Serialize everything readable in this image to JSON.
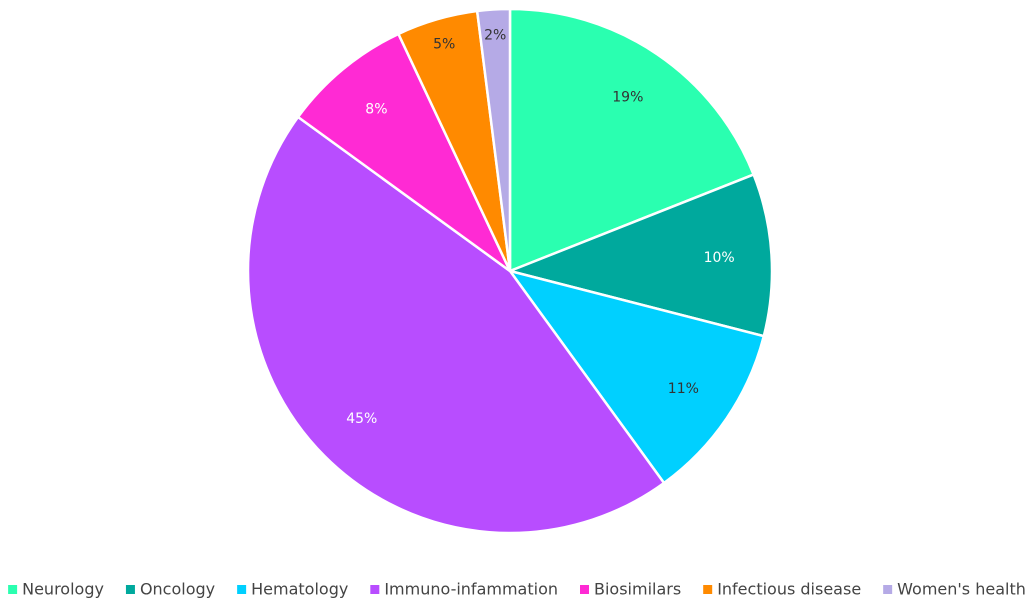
{
  "chart_data": {
    "type": "pie",
    "categories": [
      "Neurology",
      "Oncology",
      "Hematology",
      "Immuno-infammation",
      "Biosimilars",
      "Infectious disease",
      "Women's health"
    ],
    "values": [
      19,
      10,
      11,
      45,
      8,
      5,
      2
    ],
    "value_labels": [
      "19%",
      "10%",
      "11%",
      "45%",
      "8%",
      "5%",
      "2%"
    ],
    "colors": [
      "#2affb0",
      "#00a99d",
      "#00d0ff",
      "#b84dff",
      "#ff2ad4",
      "#ff8a00",
      "#b5aae6"
    ],
    "legend": "bottom"
  }
}
